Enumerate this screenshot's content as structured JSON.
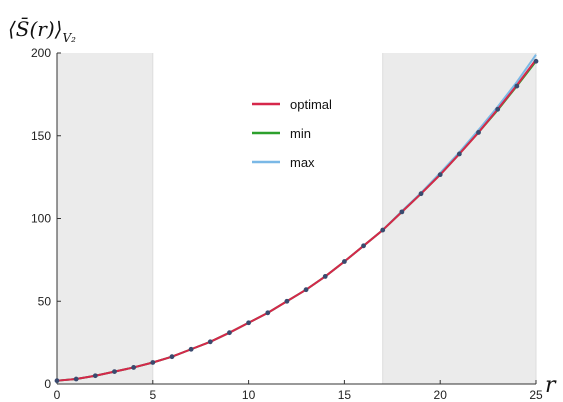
{
  "chart_data": {
    "type": "line",
    "title": "",
    "ylabel": "⟨S̄(r)⟩",
    "ylabel_subscript": "V₂",
    "xlabel": "r",
    "xlim": [
      0,
      25
    ],
    "ylim": [
      0,
      200
    ],
    "xticks": [
      0,
      5,
      10,
      15,
      20,
      25
    ],
    "yticks": [
      0,
      50,
      100,
      150,
      200
    ],
    "grid": false,
    "legend_position": "top-center",
    "shaded_regions": [
      [
        0,
        5
      ],
      [
        17,
        25
      ]
    ],
    "x": [
      0,
      1,
      2,
      3,
      4,
      5,
      6,
      7,
      8,
      9,
      10,
      11,
      12,
      13,
      14,
      15,
      16,
      17,
      18,
      19,
      20,
      21,
      22,
      23,
      24,
      25
    ],
    "series": [
      {
        "name": "optimal",
        "color": "#d6274a",
        "values": [
          2,
          3,
          5,
          7.5,
          10,
          13,
          16.5,
          21,
          25.5,
          31,
          37,
          43,
          50,
          57,
          65,
          74,
          83.5,
          93,
          104,
          115,
          126.5,
          139,
          152,
          166,
          180.5,
          196
        ]
      },
      {
        "name": "min",
        "color": "#2ca02c",
        "values": [
          2,
          3,
          5,
          7.5,
          10,
          13,
          16.5,
          21,
          25.5,
          31,
          37,
          43,
          50,
          57,
          65,
          74,
          83.5,
          93,
          104,
          115,
          126.5,
          139,
          152,
          165.5,
          180,
          195
        ]
      },
      {
        "name": "max",
        "color": "#7ab8e6",
        "values": [
          2,
          3,
          5,
          7.5,
          10,
          13,
          16.5,
          21,
          25.5,
          31,
          37,
          43,
          50,
          57,
          65,
          74,
          83.5,
          93,
          104.5,
          115.5,
          127.5,
          140,
          153.5,
          167.5,
          182.5,
          199
        ]
      }
    ],
    "markers": {
      "color": "#3a4a6e",
      "x": [
        0,
        1,
        2,
        3,
        4,
        5,
        6,
        7,
        8,
        9,
        10,
        11,
        12,
        13,
        14,
        15,
        16,
        17,
        18,
        19,
        20,
        21,
        22,
        23,
        24,
        25
      ],
      "y": [
        2,
        3,
        5,
        7.5,
        10,
        13,
        16.5,
        21,
        25.5,
        31,
        37,
        43,
        50,
        57,
        65,
        74,
        83.5,
        93,
        104,
        115,
        126.5,
        139,
        152,
        166,
        180,
        195
      ]
    }
  }
}
